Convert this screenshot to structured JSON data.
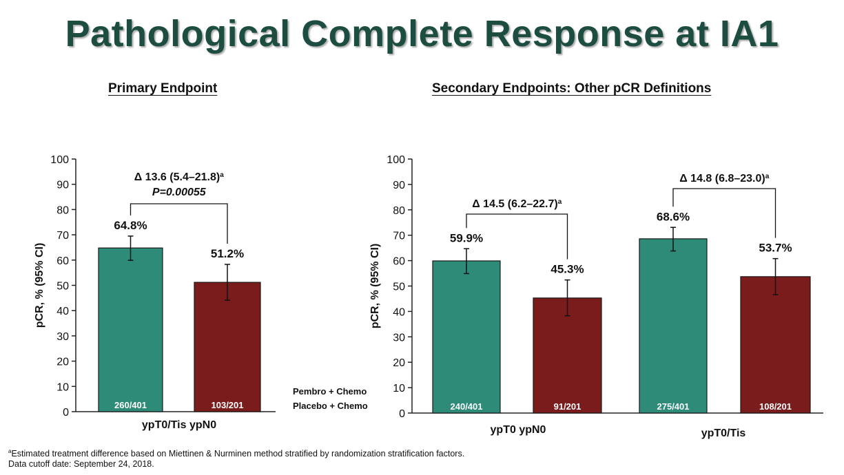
{
  "title": "Pathological Complete Response at IA1",
  "colors": {
    "pembro": "#2e8b78",
    "placebo": "#7a1c1c",
    "title": "#1d4d40"
  },
  "chart_data": [
    {
      "type": "bar",
      "panel": "primary",
      "heading": "Primary Endpoint",
      "ylabel": "pCR, % (95% CI)",
      "ylim": [
        0,
        100
      ],
      "yticks": [
        0,
        10,
        20,
        30,
        40,
        50,
        60,
        70,
        80,
        90,
        100
      ],
      "groups": [
        {
          "label": "ypT0/Tis ypN0",
          "delta": "Δ 13.6 (5.4–21.8)",
          "pvalue": "P=0.00055",
          "bars": [
            {
              "series": "Pembro + Chemo",
              "value": 64.8,
              "label": "64.8%",
              "ci": [
                59.9,
                69.5
              ],
              "n": "260/401"
            },
            {
              "series": "Placebo + Chemo",
              "value": 51.2,
              "label": "51.2%",
              "ci": [
                44.1,
                58.3
              ],
              "n": "103/201"
            }
          ]
        }
      ]
    },
    {
      "type": "bar",
      "panel": "secondary",
      "heading": "Secondary Endpoints: Other pCR Definitions",
      "ylabel": "pCR, % (95% CI)",
      "ylim": [
        0,
        100
      ],
      "yticks": [
        0,
        10,
        20,
        30,
        40,
        50,
        60,
        70,
        80,
        90,
        100
      ],
      "legend": [
        "Pembro + Chemo",
        "Placebo + Chemo"
      ],
      "groups": [
        {
          "label": "ypT0 ypN0",
          "delta": "Δ 14.5 (6.2–22.7)",
          "bars": [
            {
              "series": "Pembro + Chemo",
              "value": 59.9,
              "label": "59.9%",
              "ci": [
                54.9,
                64.7
              ],
              "n": "240/401"
            },
            {
              "series": "Placebo + Chemo",
              "value": 45.3,
              "label": "45.3%",
              "ci": [
                38.3,
                52.4
              ],
              "n": "91/201"
            }
          ]
        },
        {
          "label": "ypT0/Tis",
          "delta": "Δ 14.8 (6.8–23.0)",
          "bars": [
            {
              "series": "Pembro + Chemo",
              "value": 68.6,
              "label": "68.6%",
              "ci": [
                63.8,
                73.1
              ],
              "n": "275/401"
            },
            {
              "series": "Placebo + Chemo",
              "value": 53.7,
              "label": "53.7%",
              "ci": [
                46.6,
                60.8
              ],
              "n": "108/201"
            }
          ]
        }
      ]
    }
  ],
  "footnotes": {
    "marker": "a",
    "line1": "Estimated treatment difference based on Miettinen & Nurminen method stratified by randomization stratification factors.",
    "line2": "Data cutoff date: September 24, 2018."
  }
}
